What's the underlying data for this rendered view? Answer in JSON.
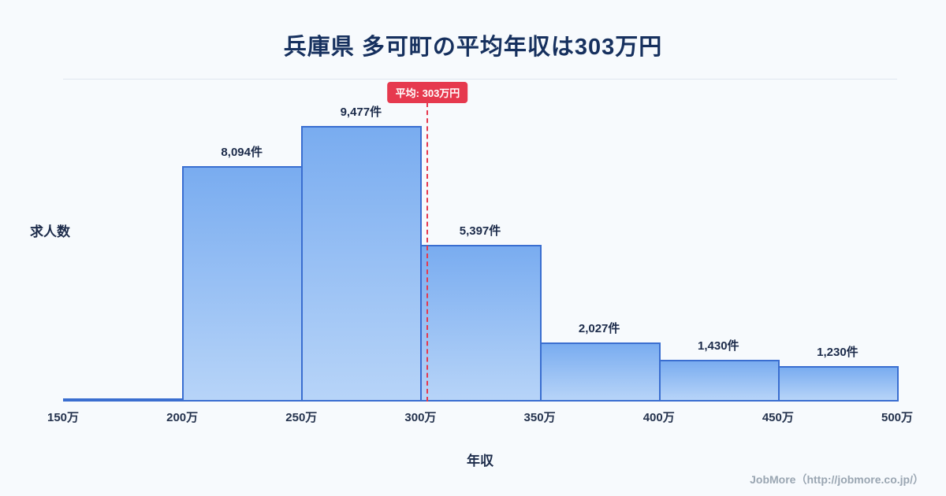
{
  "title": "兵庫県 多可町の平均年収は303万円",
  "ylabel": "求人数",
  "xlabel": "年収",
  "average_badge": "平均: 303万円",
  "footer": "JobMore（http://jobmore.co.jp/）",
  "colors": {
    "background": "#f7fafd",
    "title": "#16305e",
    "accent_red": "#e6394e",
    "bar_border": "#3a6ed0",
    "bar_top": "#79acf0",
    "bar_bottom": "#b7d4f8"
  },
  "chart_data": {
    "type": "bar",
    "title": "兵庫県 多可町の平均年収は303万円",
    "xlabel": "年収",
    "ylabel": "求人数",
    "categories": [
      "150万-200万",
      "200万-250万",
      "250万-300万",
      "300万-350万",
      "350万-400万",
      "400万-450万",
      "450万-500万"
    ],
    "values": [
      120,
      8094,
      9477,
      5397,
      2027,
      1430,
      1230
    ],
    "bar_labels": [
      "",
      "8,094件",
      "9,477件",
      "5,397件",
      "2,027件",
      "1,430件",
      "1,230件"
    ],
    "x_ticks": [
      "150万",
      "200万",
      "250万",
      "300万",
      "350万",
      "400万",
      "450万",
      "500万"
    ],
    "x_range": [
      150,
      500
    ],
    "average_value": 303,
    "ylim": [
      0,
      11100
    ],
    "grid": "top-line-only",
    "legend": false
  }
}
